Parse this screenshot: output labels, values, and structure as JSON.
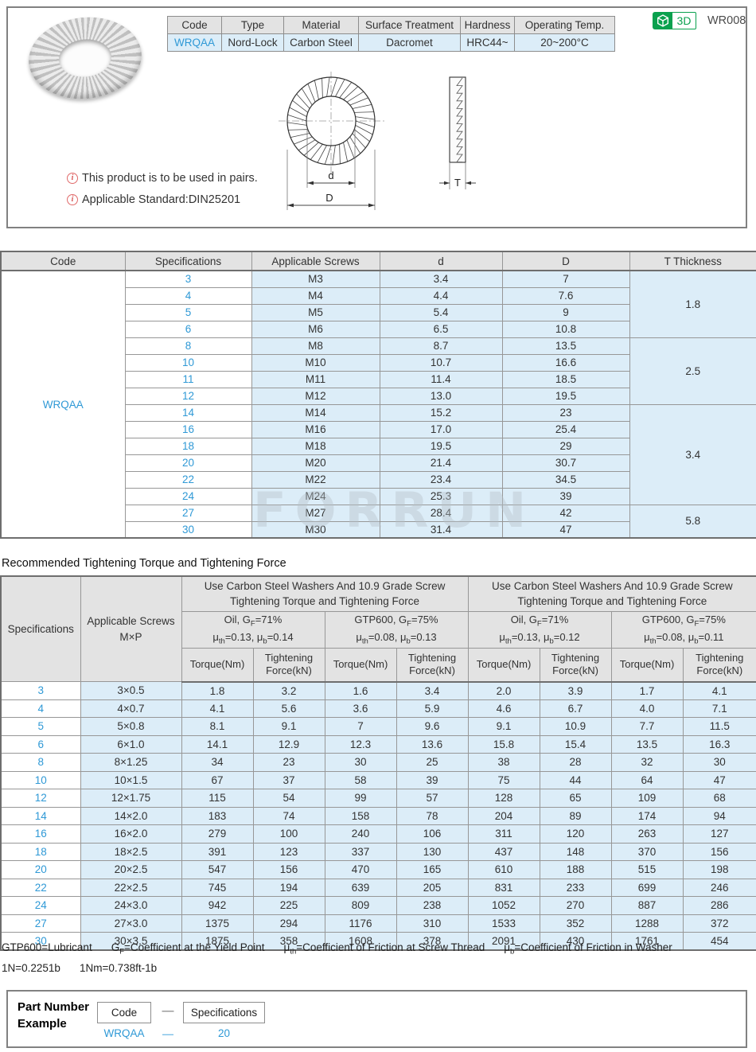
{
  "page_id": "WR008",
  "badge": {
    "label": "3D"
  },
  "info_table": {
    "headers": [
      "Code",
      "Type",
      "Material",
      "Surface Treatment",
      "Hardness",
      "Operating Temp."
    ],
    "values": [
      "WRQAA",
      "Nord-Lock",
      "Carbon Steel",
      "Dacromet",
      "HRC44~",
      "20~200°C"
    ]
  },
  "notes": {
    "icon": "i",
    "items": [
      "This product is to be used in pairs.",
      "Applicable Standard:DIN25201"
    ]
  },
  "diagram": {
    "d_label": "d",
    "D_label": "D",
    "T_label": "T"
  },
  "spec_table": {
    "headers": [
      "Code",
      "Specifications",
      "Applicable Screws",
      "d",
      "D",
      "T Thickness"
    ],
    "code": "WRQAA",
    "rows": [
      {
        "spec": "3",
        "screw": "M3",
        "d": "3.4",
        "D": "7"
      },
      {
        "spec": "4",
        "screw": "M4",
        "d": "4.4",
        "D": "7.6"
      },
      {
        "spec": "5",
        "screw": "M5",
        "d": "5.4",
        "D": "9"
      },
      {
        "spec": "6",
        "screw": "M6",
        "d": "6.5",
        "D": "10.8"
      },
      {
        "spec": "8",
        "screw": "M8",
        "d": "8.7",
        "D": "13.5"
      },
      {
        "spec": "10",
        "screw": "M10",
        "d": "10.7",
        "D": "16.6"
      },
      {
        "spec": "11",
        "screw": "M11",
        "d": "11.4",
        "D": "18.5"
      },
      {
        "spec": "12",
        "screw": "M12",
        "d": "13.0",
        "D": "19.5"
      },
      {
        "spec": "14",
        "screw": "M14",
        "d": "15.2",
        "D": "23"
      },
      {
        "spec": "16",
        "screw": "M16",
        "d": "17.0",
        "D": "25.4"
      },
      {
        "spec": "18",
        "screw": "M18",
        "d": "19.5",
        "D": "29"
      },
      {
        "spec": "20",
        "screw": "M20",
        "d": "21.4",
        "D": "30.7"
      },
      {
        "spec": "22",
        "screw": "M22",
        "d": "23.4",
        "D": "34.5"
      },
      {
        "spec": "24",
        "screw": "M24",
        "d": "25.3",
        "D": "39"
      },
      {
        "spec": "27",
        "screw": "M27",
        "d": "28.4",
        "D": "42"
      },
      {
        "spec": "30",
        "screw": "M30",
        "d": "31.4",
        "D": "47"
      }
    ],
    "t_groups": [
      {
        "t": "1.8",
        "span": 4
      },
      {
        "t": "2.5",
        "span": 4
      },
      {
        "t": "3.4",
        "span": 6
      },
      {
        "t": "5.8",
        "span": 2
      }
    ]
  },
  "torque_section": {
    "title": "Recommended Tightening Torque and Tightening Force",
    "col1": "Specifications",
    "col2_l1": "Applicable Screws",
    "col2_l2": "M×P",
    "group_l1": "Use Carbon Steel Washers And 10.9 Grade Screw",
    "group_l2": "Tightening Torque and Tightening Force",
    "conditions": [
      {
        "l1": [
          "Oil, G",
          "F",
          "=71%"
        ],
        "l2": [
          "μ",
          "th",
          "=0.13, μ",
          "b",
          "=0.14"
        ]
      },
      {
        "l1": [
          "GTP600, G",
          "F",
          "=75%"
        ],
        "l2": [
          "μ",
          "th",
          "=0.08, μ",
          "b",
          "=0.13"
        ]
      },
      {
        "l1": [
          "Oil, G",
          "F",
          "=71%"
        ],
        "l2": [
          "μ",
          "th",
          "=0.13, μ",
          "b",
          "=0.12"
        ]
      },
      {
        "l1": [
          "GTP600, G",
          "F",
          "=75%"
        ],
        "l2": [
          "μ",
          "th",
          "=0.08, μ",
          "b",
          "=0.11"
        ]
      }
    ],
    "sub_headers": {
      "torque": "Torque(Nm)",
      "force_l1": "Tightening",
      "force_l2": "Force(kN)"
    },
    "rows": [
      {
        "spec": "3",
        "screw": "3×0.5",
        "vals": [
          "1.8",
          "3.2",
          "1.6",
          "3.4",
          "2.0",
          "3.9",
          "1.7",
          "4.1"
        ]
      },
      {
        "spec": "4",
        "screw": "4×0.7",
        "vals": [
          "4.1",
          "5.6",
          "3.6",
          "5.9",
          "4.6",
          "6.7",
          "4.0",
          "7.1"
        ]
      },
      {
        "spec": "5",
        "screw": "5×0.8",
        "vals": [
          "8.1",
          "9.1",
          "7",
          "9.6",
          "9.1",
          "10.9",
          "7.7",
          "11.5"
        ]
      },
      {
        "spec": "6",
        "screw": "6×1.0",
        "vals": [
          "14.1",
          "12.9",
          "12.3",
          "13.6",
          "15.8",
          "15.4",
          "13.5",
          "16.3"
        ]
      },
      {
        "spec": "8",
        "screw": "8×1.25",
        "vals": [
          "34",
          "23",
          "30",
          "25",
          "38",
          "28",
          "32",
          "30"
        ]
      },
      {
        "spec": "10",
        "screw": "10×1.5",
        "vals": [
          "67",
          "37",
          "58",
          "39",
          "75",
          "44",
          "64",
          "47"
        ]
      },
      {
        "spec": "12",
        "screw": "12×1.75",
        "vals": [
          "115",
          "54",
          "99",
          "57",
          "128",
          "65",
          "109",
          "68"
        ]
      },
      {
        "spec": "14",
        "screw": "14×2.0",
        "vals": [
          "183",
          "74",
          "158",
          "78",
          "204",
          "89",
          "174",
          "94"
        ]
      },
      {
        "spec": "16",
        "screw": "16×2.0",
        "vals": [
          "279",
          "100",
          "240",
          "106",
          "311",
          "120",
          "263",
          "127"
        ]
      },
      {
        "spec": "18",
        "screw": "18×2.5",
        "vals": [
          "391",
          "123",
          "337",
          "130",
          "437",
          "148",
          "370",
          "156"
        ]
      },
      {
        "spec": "20",
        "screw": "20×2.5",
        "vals": [
          "547",
          "156",
          "470",
          "165",
          "610",
          "188",
          "515",
          "198"
        ]
      },
      {
        "spec": "22",
        "screw": "22×2.5",
        "vals": [
          "745",
          "194",
          "639",
          "205",
          "831",
          "233",
          "699",
          "246"
        ]
      },
      {
        "spec": "24",
        "screw": "24×3.0",
        "vals": [
          "942",
          "225",
          "809",
          "238",
          "1052",
          "270",
          "887",
          "286"
        ]
      },
      {
        "spec": "27",
        "screw": "27×3.0",
        "vals": [
          "1375",
          "294",
          "1176",
          "310",
          "1533",
          "352",
          "1288",
          "372"
        ]
      },
      {
        "spec": "30",
        "screw": "30×3.5",
        "vals": [
          "1875",
          "358",
          "1608",
          "378",
          "2091",
          "430",
          "1761",
          "454"
        ]
      }
    ]
  },
  "footnotes": {
    "line1": [
      [
        "GTP600=Lubricant"
      ],
      [
        "G",
        "F",
        "=Coefficient at the Yield Point"
      ],
      [
        "μ",
        "th",
        "=Coefficient of Friction at Screw Thread"
      ],
      [
        "μ",
        "b",
        "=Coefficient of Friction in Washer"
      ]
    ],
    "line2": [
      "1N=0.2251b",
      "1Nm=0.738ft-1b"
    ]
  },
  "part_example": {
    "label_l1": "Part Number",
    "label_l2": "Example",
    "box1": "Code",
    "box2": "Specifications",
    "dash": "—",
    "value1": "WRQAA",
    "value2": "20"
  },
  "watermark": "FORRUN",
  "colors": {
    "accent_blue": "#2f99d6",
    "cell_blue": "#dcedf8",
    "header_gray": "#e3e3e3",
    "badge_green": "#0aa14e",
    "note_red": "#d95555"
  }
}
